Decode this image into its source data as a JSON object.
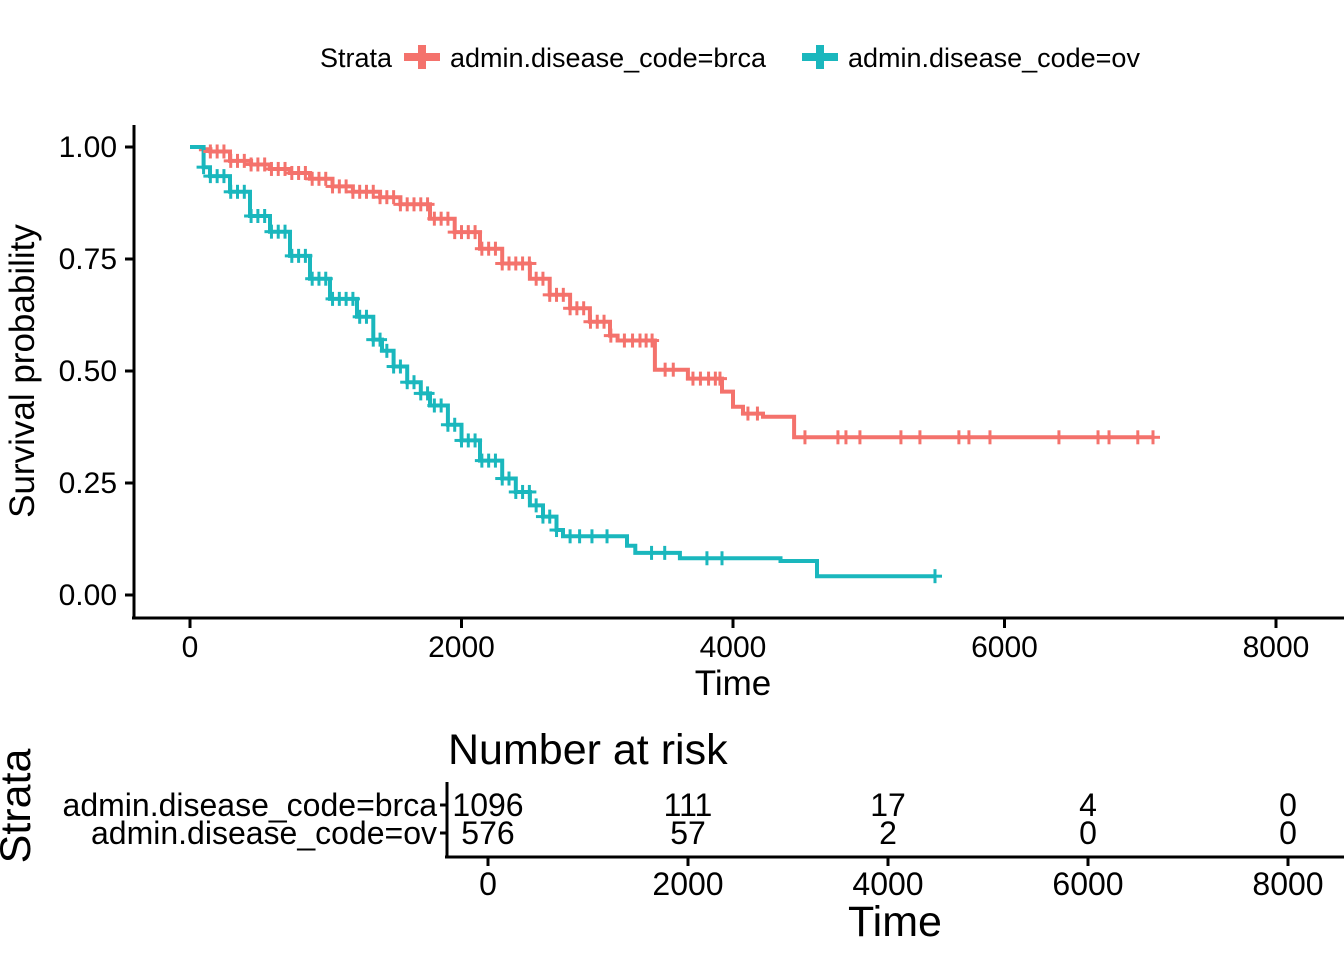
{
  "legend": {
    "title": "Strata",
    "items": [
      {
        "label": "admin.disease_code=brca",
        "color": "#F4726C"
      },
      {
        "label": "admin.disease_code=ov",
        "color": "#1AB7BD"
      }
    ]
  },
  "main_plot": {
    "ylabel": "Survival probability",
    "xlabel": "Time",
    "ytick_labels": [
      "1.00",
      "0.75",
      "0.50",
      "0.25",
      "0.00"
    ],
    "ytick_values": [
      1.0,
      0.75,
      0.5,
      0.25,
      0.0
    ],
    "xtick_labels": [
      "0",
      "2000",
      "4000",
      "6000",
      "8000"
    ],
    "xtick_values": [
      0,
      2000,
      4000,
      6000,
      8000
    ]
  },
  "risk_table": {
    "title": "Number at risk",
    "ylabel": "Strata",
    "xlabel": "Time",
    "xtick_labels": [
      "0",
      "2000",
      "4000",
      "6000",
      "8000"
    ],
    "xtick_values": [
      0,
      2000,
      4000,
      6000,
      8000
    ],
    "rows": [
      {
        "label": "admin.disease_code=brca",
        "color": "#F4726C",
        "counts": [
          1096,
          111,
          17,
          4,
          0
        ]
      },
      {
        "label": "admin.disease_code=ov",
        "color": "#1AB7BD",
        "counts": [
          576,
          57,
          2,
          0,
          0
        ]
      }
    ]
  },
  "chart_data": {
    "type": "line",
    "subtype": "kaplan-meier-step",
    "title": "",
    "xlabel": "Time",
    "ylabel": "Survival probability",
    "xlim": [
      0,
      8000
    ],
    "ylim": [
      0,
      1
    ],
    "grid": false,
    "legend_position": "top",
    "series": [
      {
        "name": "admin.disease_code=brca",
        "color": "#F4726C",
        "points": [
          [
            0,
            1.0
          ],
          [
            80,
            0.995
          ],
          [
            150,
            0.99
          ],
          [
            295,
            0.969
          ],
          [
            450,
            0.961
          ],
          [
            589,
            0.951
          ],
          [
            737,
            0.942
          ],
          [
            884,
            0.929
          ],
          [
            1050,
            0.912
          ],
          [
            1200,
            0.9
          ],
          [
            1400,
            0.888
          ],
          [
            1550,
            0.872
          ],
          [
            1768,
            0.84
          ],
          [
            1950,
            0.81
          ],
          [
            2136,
            0.773
          ],
          [
            2300,
            0.74
          ],
          [
            2504,
            0.706
          ],
          [
            2650,
            0.67
          ],
          [
            2800,
            0.64
          ],
          [
            2946,
            0.61
          ],
          [
            3094,
            0.579
          ],
          [
            3150,
            0.568
          ],
          [
            3425,
            0.503
          ],
          [
            3668,
            0.483
          ],
          [
            3919,
            0.454
          ],
          [
            4000,
            0.42
          ],
          [
            4074,
            0.405
          ],
          [
            4221,
            0.398
          ],
          [
            4450,
            0.352
          ],
          [
            7094,
            0.352
          ]
        ],
        "censor_times": [
          150,
          200,
          250,
          300,
          350,
          400,
          450,
          500,
          550,
          600,
          650,
          700,
          750,
          800,
          850,
          900,
          950,
          1000,
          1050,
          1100,
          1150,
          1200,
          1250,
          1300,
          1350,
          1400,
          1450,
          1500,
          1550,
          1600,
          1650,
          1700,
          1750,
          1800,
          1850,
          1900,
          1950,
          2000,
          2050,
          2100,
          2150,
          2200,
          2250,
          2300,
          2350,
          2400,
          2450,
          2500,
          2550,
          2600,
          2650,
          2700,
          2750,
          2800,
          2850,
          2900,
          2950,
          3000,
          3050,
          3100,
          3200,
          3260,
          3315,
          3360,
          3404,
          3500,
          3560,
          3705,
          3760,
          3820,
          3870,
          3904,
          4110,
          4180,
          4530,
          4773,
          4832,
          4935,
          5237,
          5377,
          5664,
          5738,
          5893,
          6401,
          6689,
          6770,
          6982,
          7094
        ]
      },
      {
        "name": "admin.disease_code=ov",
        "color": "#1AB7BD",
        "points": [
          [
            0,
            1.0
          ],
          [
            100,
            0.955
          ],
          [
            147,
            0.935
          ],
          [
            295,
            0.9
          ],
          [
            442,
            0.846
          ],
          [
            589,
            0.811
          ],
          [
            737,
            0.757
          ],
          [
            884,
            0.706
          ],
          [
            1031,
            0.661
          ],
          [
            1230,
            0.621
          ],
          [
            1350,
            0.57
          ],
          [
            1414,
            0.545
          ],
          [
            1500,
            0.51
          ],
          [
            1600,
            0.475
          ],
          [
            1700,
            0.45
          ],
          [
            1768,
            0.423
          ],
          [
            1900,
            0.38
          ],
          [
            2000,
            0.345
          ],
          [
            2136,
            0.3
          ],
          [
            2300,
            0.26
          ],
          [
            2400,
            0.23
          ],
          [
            2504,
            0.2
          ],
          [
            2600,
            0.175
          ],
          [
            2700,
            0.145
          ],
          [
            2748,
            0.131
          ],
          [
            3219,
            0.11
          ],
          [
            3280,
            0.094
          ],
          [
            3609,
            0.082
          ],
          [
            4350,
            0.076
          ],
          [
            4619,
            0.042
          ],
          [
            5488,
            0.042
          ]
        ],
        "censor_times": [
          100,
          150,
          200,
          250,
          300,
          350,
          400,
          450,
          500,
          550,
          600,
          650,
          700,
          750,
          800,
          850,
          900,
          950,
          1000,
          1050,
          1100,
          1150,
          1200,
          1250,
          1300,
          1350,
          1400,
          1450,
          1500,
          1550,
          1600,
          1650,
          1700,
          1750,
          1800,
          1850,
          1900,
          1950,
          2000,
          2050,
          2100,
          2150,
          2200,
          2250,
          2300,
          2350,
          2400,
          2450,
          2500,
          2550,
          2600,
          2650,
          2700,
          2800,
          2870,
          2961,
          3072,
          3400,
          3497,
          3808,
          3919,
          5488
        ]
      }
    ],
    "risk_table": {
      "title": "Number at risk",
      "times": [
        0,
        2000,
        4000,
        6000,
        8000
      ],
      "at_risk": {
        "admin.disease_code=brca": [
          1096,
          111,
          17,
          4,
          0
        ],
        "admin.disease_code=ov": [
          576,
          57,
          2,
          0,
          0
        ]
      }
    }
  }
}
